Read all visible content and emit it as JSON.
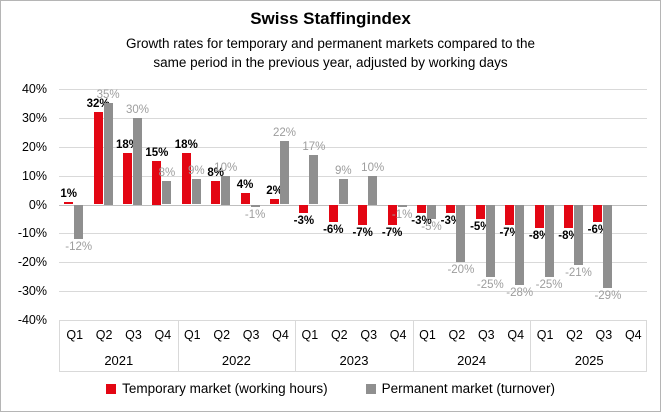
{
  "window": {
    "background": "#ffffff",
    "border_color": "#b5b5b5"
  },
  "header": {
    "title": "Swiss Staffingindex",
    "subtitle_line1": "Growth rates for temporary and permanent markets compared to the",
    "subtitle_line2": "same period in the previous year, adjusted by working days"
  },
  "chart_data": {
    "type": "bar",
    "title": "Swiss Staffingindex",
    "xlabel": "",
    "ylabel": "",
    "ylim": [
      -40,
      40
    ],
    "yticks": [
      40,
      30,
      20,
      10,
      0,
      -10,
      -20,
      -30,
      -40
    ],
    "ytick_suffix": "%",
    "value_suffix": "%",
    "grid": true,
    "legend_position": "bottom",
    "years": [
      "2021",
      "2022",
      "2023",
      "2024",
      "2025"
    ],
    "quarters_per_year": [
      "Q1",
      "Q2",
      "Q3",
      "Q4"
    ],
    "gridline_color": "#d9d9d9",
    "zero_line_color": "#bfbfbf",
    "series": [
      {
        "name": "Temporary market (working hours)",
        "color": "#e30613",
        "label_color": "#000000",
        "label_bold": true,
        "values": [
          1,
          32,
          18,
          15,
          18,
          8,
          4,
          2,
          -3,
          -6,
          -7,
          -7,
          -3,
          -3,
          -5,
          -7,
          -8,
          -8,
          -6,
          null
        ]
      },
      {
        "name": "Permanent market (turnover)",
        "color": "#8f8f8f",
        "label_color": "#9d9d9d",
        "label_bold": false,
        "values": [
          -12,
          35,
          30,
          8,
          9,
          10,
          -1,
          22,
          17,
          9,
          10,
          -1,
          -5,
          -20,
          -25,
          -28,
          -25,
          -21,
          -29,
          null
        ]
      }
    ]
  }
}
